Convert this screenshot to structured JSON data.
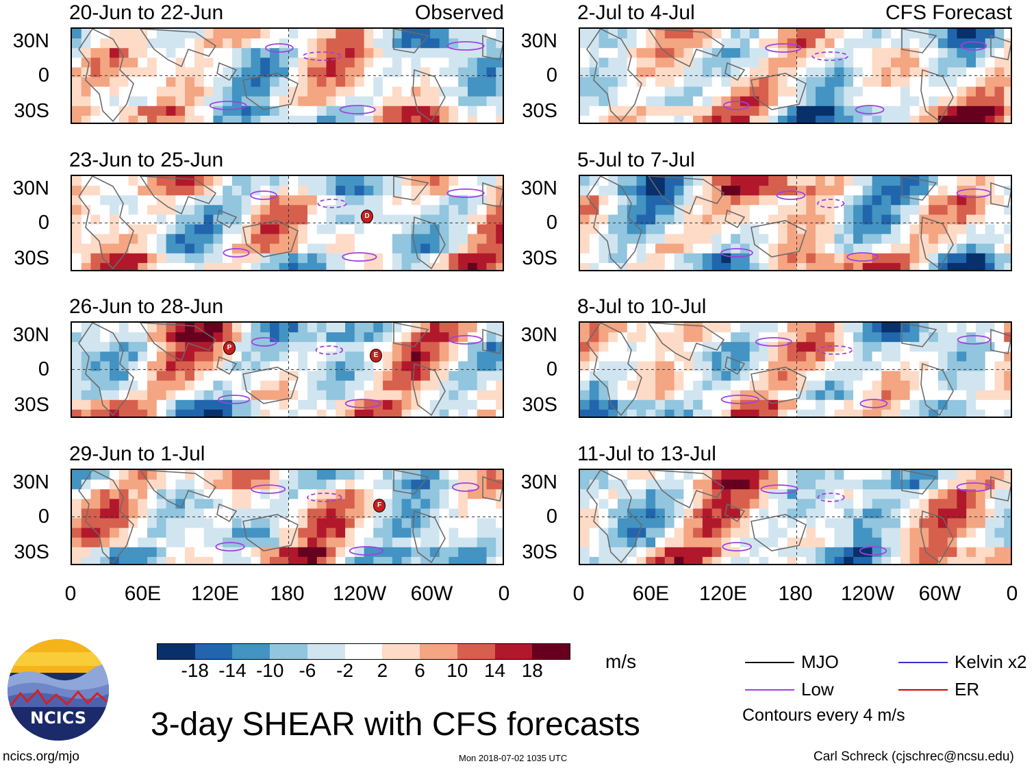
{
  "panels": [
    {
      "title": "20-Jun to 22-Jun",
      "right_label": "Observed",
      "storms": []
    },
    {
      "title": "23-Jun to 25-Jun",
      "right_label": "",
      "storms": [
        "D"
      ]
    },
    {
      "title": "26-Jun to 28-Jun",
      "right_label": "",
      "storms": [
        "P",
        "E"
      ]
    },
    {
      "title": "29-Jun to 1-Jul",
      "right_label": "",
      "storms": [
        "F"
      ]
    },
    {
      "title": "2-Jul to 4-Jul",
      "right_label": "CFS Forecast",
      "storms": []
    },
    {
      "title": "5-Jul to 7-Jul",
      "right_label": "",
      "storms": []
    },
    {
      "title": "8-Jul to 10-Jul",
      "right_label": "",
      "storms": []
    },
    {
      "title": "11-Jul to 13-Jul",
      "right_label": "",
      "storms": []
    }
  ],
  "y_ticks": [
    "30N",
    "0",
    "30S"
  ],
  "x_ticks": [
    "0",
    "60E",
    "120E",
    "180",
    "120W",
    "60W",
    "0"
  ],
  "colorbar": {
    "colors": [
      "#08306b",
      "#2166ac",
      "#4393c3",
      "#92c5de",
      "#d1e5f0",
      "#ffffff",
      "#fddbc7",
      "#f4a582",
      "#d6604d",
      "#b2182b",
      "#67001f"
    ],
    "labels": [
      "-18",
      "-14",
      "-10",
      "-6",
      "-2",
      "2",
      "6",
      "10",
      "14",
      "18"
    ],
    "unit": "m/s"
  },
  "legend": {
    "items": [
      {
        "label": "MJO",
        "color": "#000000"
      },
      {
        "label": "Kelvin x2",
        "color": "#3333cc"
      },
      {
        "label": "Low",
        "color": "#a040e0"
      },
      {
        "label": "ER",
        "color": "#cc0000"
      }
    ],
    "note": "Contours every 4 m/s"
  },
  "logo_text": "NCICS",
  "main_title": "3-day SHEAR with CFS forecasts",
  "footer": {
    "left": "ncics.org/mjo",
    "center": "Mon 2018-07-02 1035 UTC",
    "right": "Carl Schreck (cjschrec@ncsu.edu)"
  }
}
